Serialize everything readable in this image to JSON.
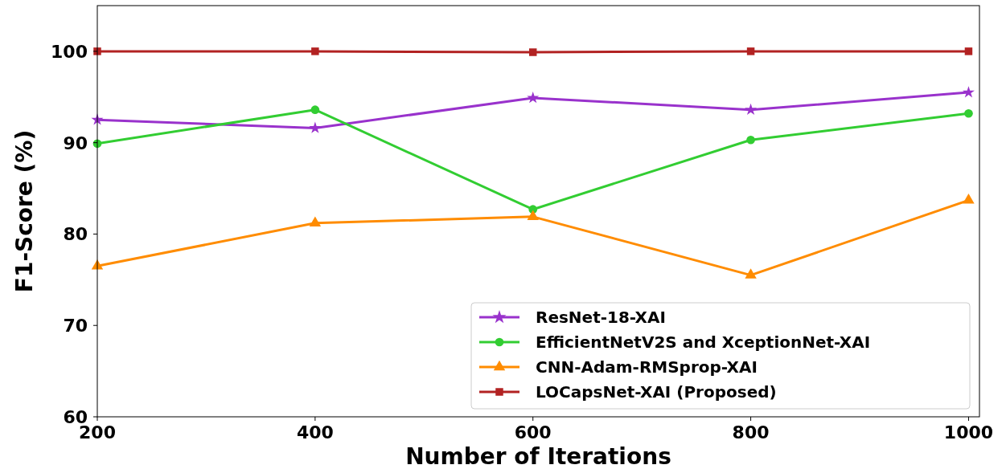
{
  "chart_data": {
    "type": "line",
    "xlabel": "Number of Iterations",
    "ylabel": "F1-Score (%)",
    "x": [
      200,
      400,
      600,
      800,
      1000
    ],
    "series": [
      {
        "name": "ResNet-18-XAI",
        "color": "#9932cc",
        "marker": "star",
        "values": [
          92.5,
          91.6,
          94.9,
          93.6,
          95.5
        ]
      },
      {
        "name": "EfficientNetV2S and XceptionNet-XAI",
        "color": "#32cd32",
        "marker": "circle",
        "values": [
          89.9,
          93.6,
          82.7,
          90.3,
          93.2
        ]
      },
      {
        "name": "CNN-Adam-RMSprop-XAI",
        "color": "#ff8c00",
        "marker": "triangle",
        "values": [
          76.5,
          81.2,
          81.9,
          75.5,
          83.7
        ]
      },
      {
        "name": "LOCapsNet-XAI (Proposed)",
        "color": "#b22222",
        "marker": "square",
        "values": [
          100,
          100,
          99.9,
          100,
          100
        ]
      }
    ],
    "xlim": [
      200,
      1010
    ],
    "ylim": [
      60,
      105
    ],
    "xticks": [
      200,
      400,
      600,
      800,
      1000
    ],
    "yticks": [
      60,
      70,
      80,
      90,
      100
    ],
    "legend": "bottom right",
    "grid": false,
    "line_style": "solid"
  }
}
